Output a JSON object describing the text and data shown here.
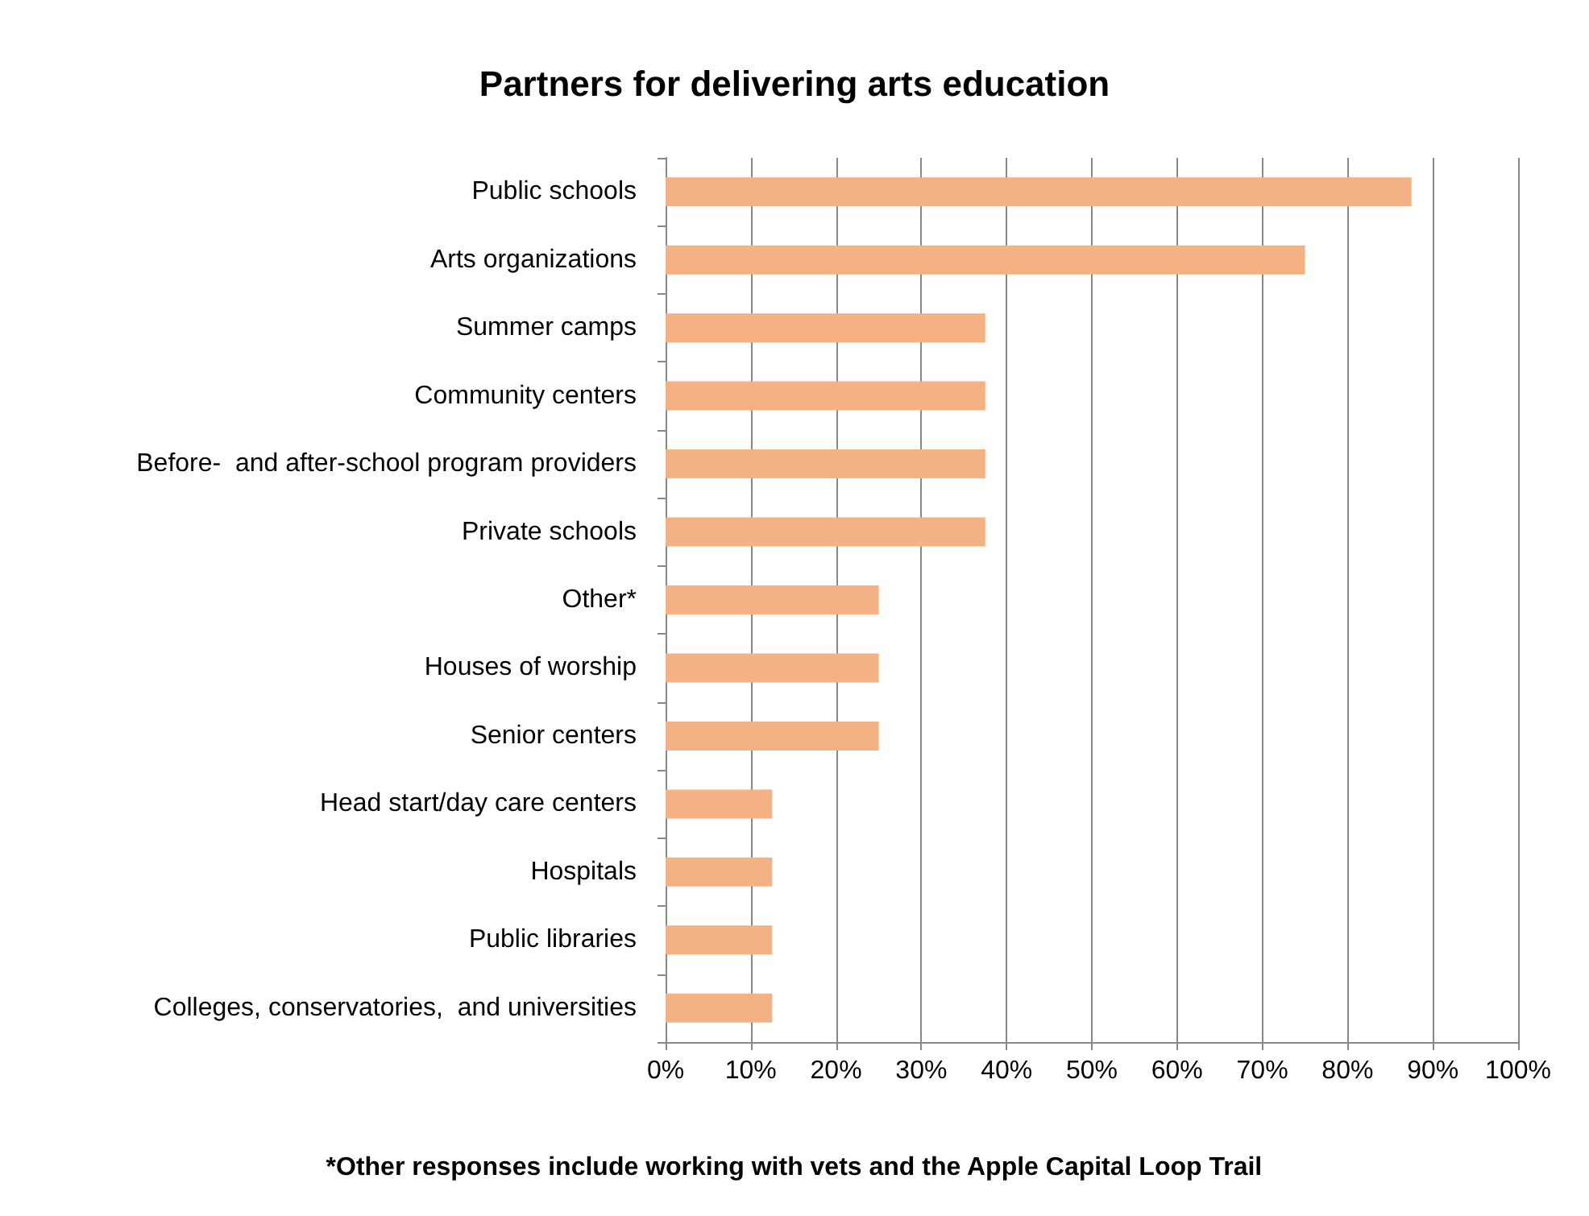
{
  "chart_data": {
    "type": "bar",
    "orientation": "horizontal",
    "title": "Partners for delivering arts education",
    "categories": [
      "Public schools",
      "Arts organizations",
      "Summer camps",
      "Community centers",
      "Before-  and after-school program providers",
      "Private schools",
      "Other*",
      "Houses of worship",
      "Senior centers",
      "Head start/day care centers",
      "Hospitals",
      "Public libraries",
      "Colleges, conservatories,  and universities"
    ],
    "values": [
      87.5,
      75,
      37.5,
      37.5,
      37.5,
      37.5,
      25,
      25,
      25,
      12.5,
      12.5,
      12.5,
      12.5
    ],
    "color": "#f4b183",
    "xlim": [
      0,
      100
    ],
    "xticks": [
      {
        "value": 0,
        "label": "0%"
      },
      {
        "value": 10,
        "label": "10%"
      },
      {
        "value": 20,
        "label": "20%"
      },
      {
        "value": 30,
        "label": "30%"
      },
      {
        "value": 40,
        "label": "40%"
      },
      {
        "value": 50,
        "label": "50%"
      },
      {
        "value": 60,
        "label": "60%"
      },
      {
        "value": 70,
        "label": "70%"
      },
      {
        "value": 80,
        "label": "80%"
      },
      {
        "value": 90,
        "label": "90%"
      },
      {
        "value": 100,
        "label": "100%"
      }
    ],
    "grid": "x",
    "annotations": [
      "*Other responses include working with vets and the Apple Capital Loop Trail"
    ]
  }
}
